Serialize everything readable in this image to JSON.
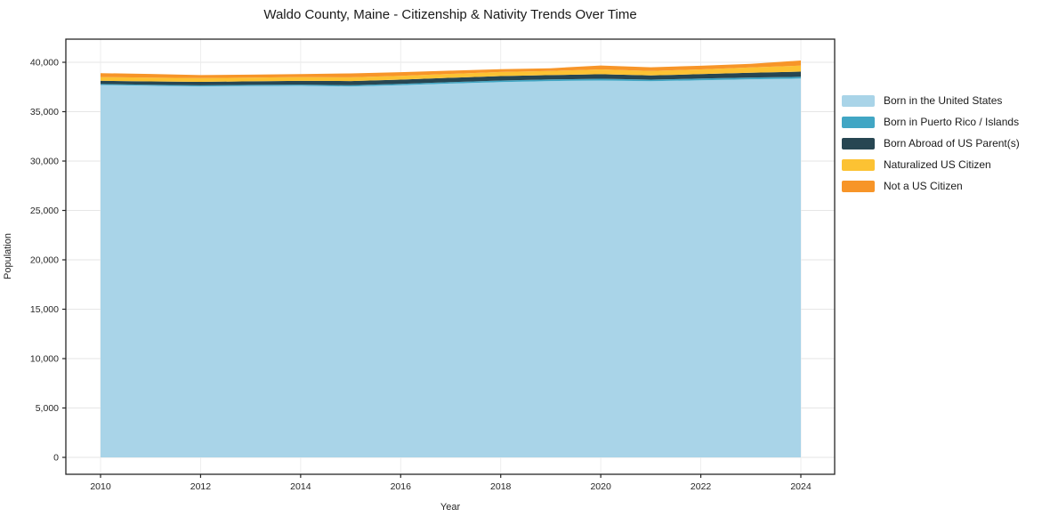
{
  "chart_data": {
    "type": "area",
    "stacked": true,
    "title": "Waldo County, Maine - Citizenship & Nativity Trends Over Time",
    "xlabel": "Year",
    "ylabel": "Population",
    "x": [
      2010,
      2011,
      2012,
      2013,
      2014,
      2015,
      2016,
      2017,
      2018,
      2019,
      2020,
      2021,
      2022,
      2023,
      2024
    ],
    "series": [
      {
        "name": "Born in the United States",
        "color": "#a9d4e8",
        "values": [
          37700,
          37620,
          37560,
          37600,
          37620,
          37560,
          37680,
          37850,
          38000,
          38100,
          38150,
          38080,
          38180,
          38280,
          38350
        ]
      },
      {
        "name": "Born in Puerto Rico / Islands",
        "color": "#41a6c4",
        "values": [
          100,
          100,
          110,
          110,
          120,
          120,
          130,
          140,
          150,
          160,
          180,
          160,
          170,
          180,
          180
        ]
      },
      {
        "name": "Born Abroad of US Parent(s)",
        "color": "#274652",
        "values": [
          330,
          340,
          350,
          360,
          380,
          420,
          430,
          440,
          450,
          440,
          460,
          430,
          450,
          480,
          520
        ]
      },
      {
        "name": "Naturalized US Citizen",
        "color": "#fcc233",
        "values": [
          370,
          380,
          380,
          380,
          380,
          380,
          390,
          400,
          420,
          430,
          490,
          460,
          480,
          540,
          620
        ]
      },
      {
        "name": "Not a US Citizen",
        "color": "#f79528",
        "values": [
          400,
          380,
          300,
          300,
          300,
          390,
          370,
          320,
          280,
          270,
          400,
          370,
          370,
          370,
          510
        ]
      }
    ],
    "xticks": [
      2010,
      2012,
      2014,
      2016,
      2018,
      2020,
      2022,
      2024
    ],
    "yticks": [
      0,
      5000,
      10000,
      15000,
      20000,
      25000,
      30000,
      35000,
      40000
    ],
    "xlim": [
      2009.3,
      2024.7
    ],
    "ylim": [
      0,
      40000
    ],
    "grid": true,
    "legend_position": "right"
  }
}
